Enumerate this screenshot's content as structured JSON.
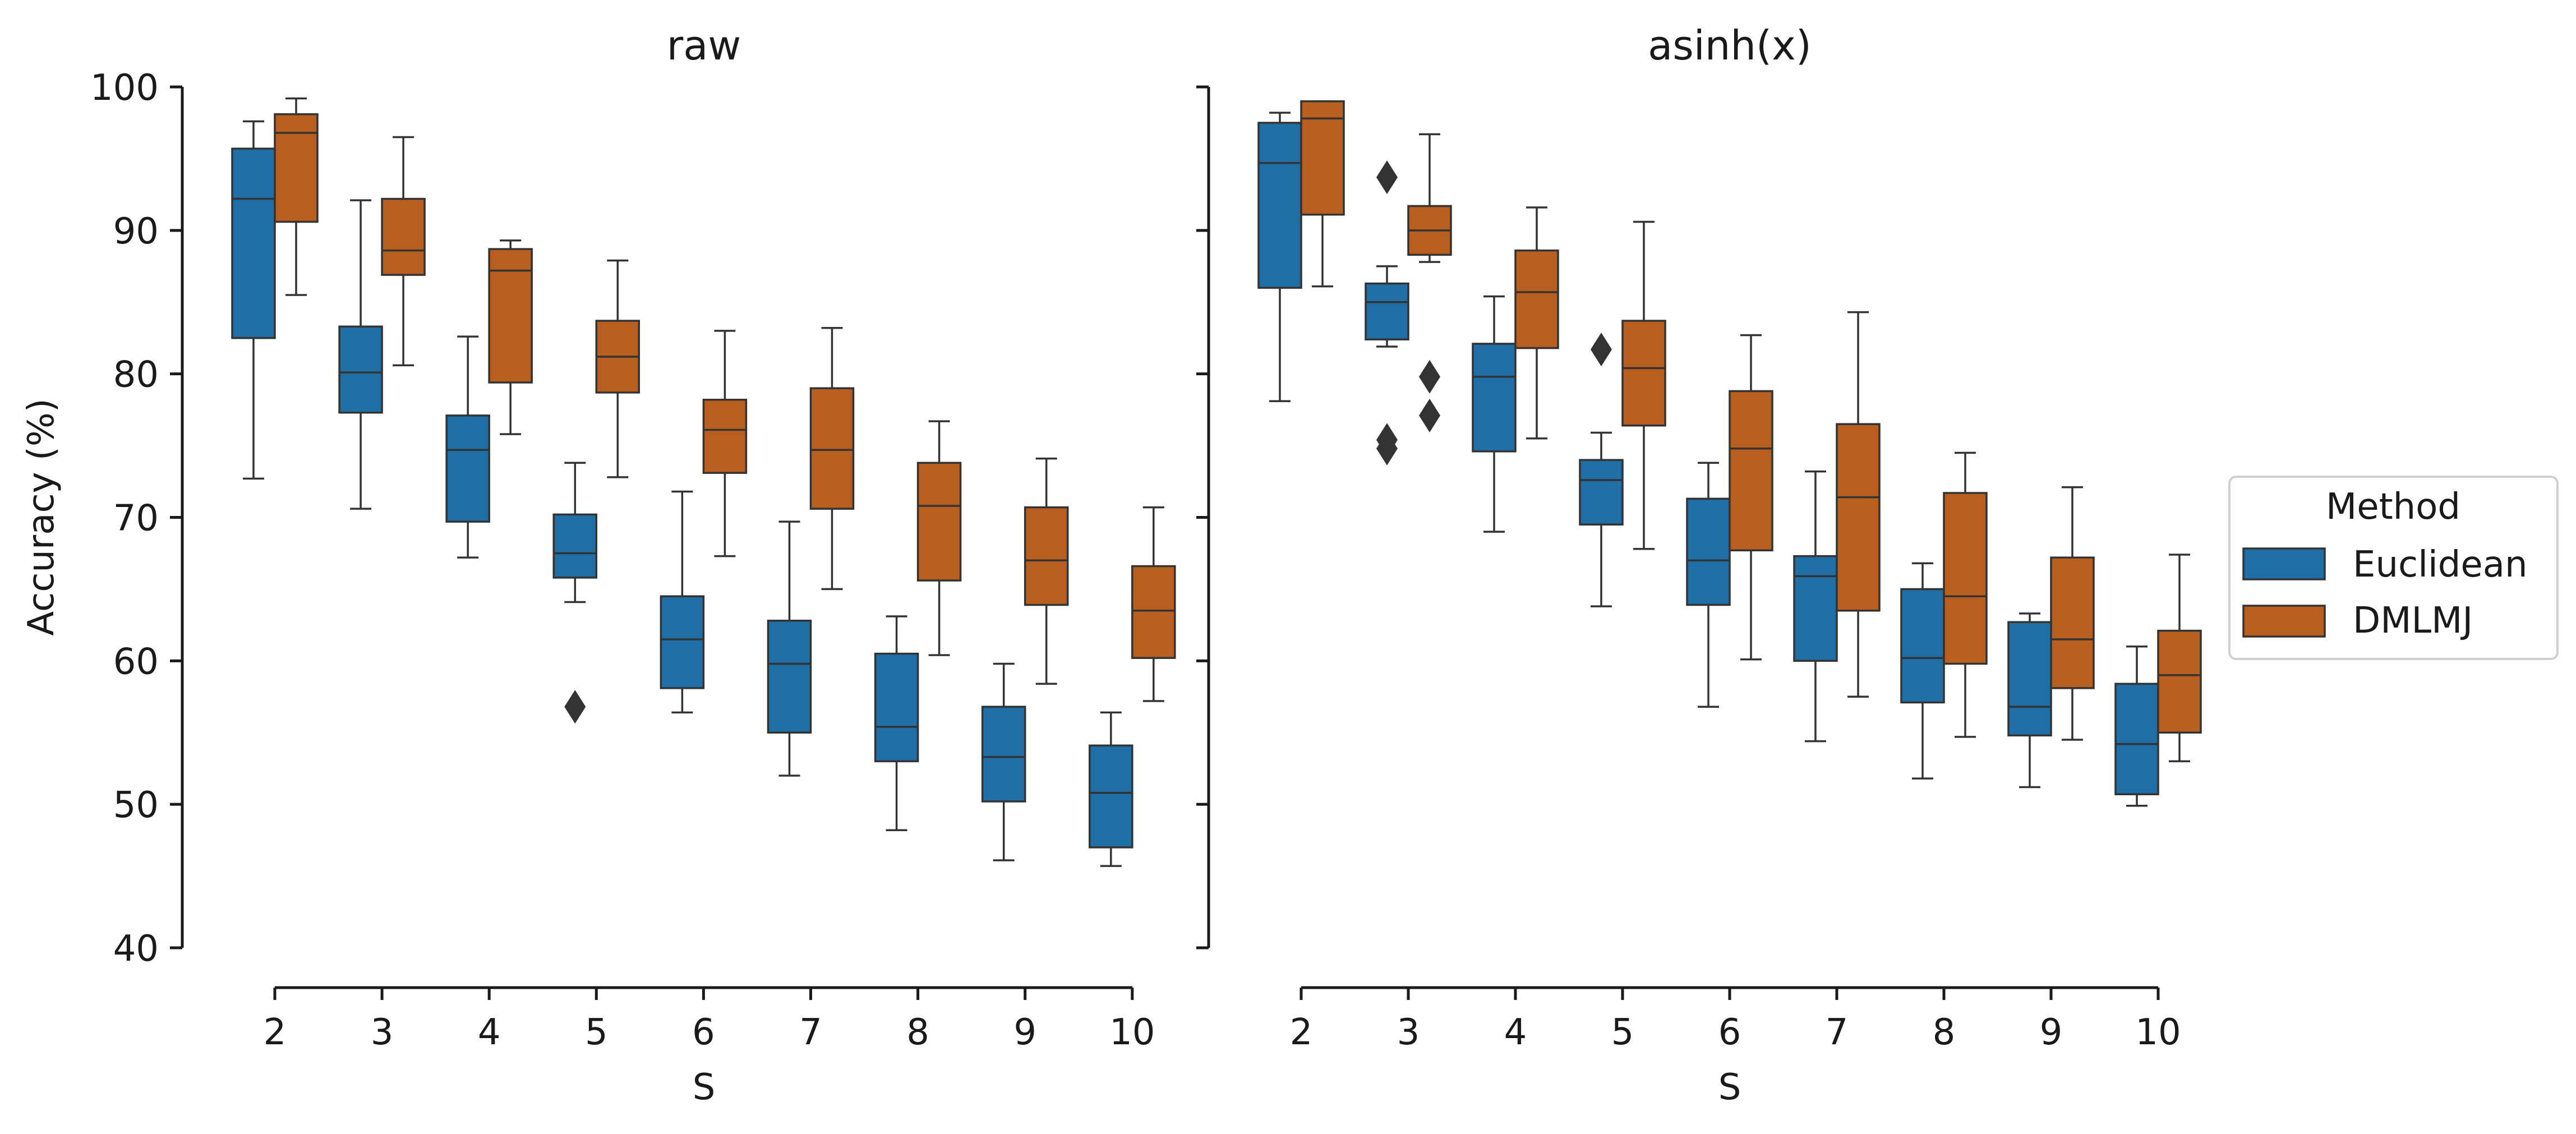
{
  "chart_data": {
    "type": "box",
    "shared": {
      "xlabel": "S",
      "ylabel": "Accuracy (%)",
      "ylim": [
        40,
        100
      ],
      "yticks": [
        40,
        50,
        60,
        70,
        80,
        90,
        100
      ],
      "grid": false,
      "legend": {
        "title": "Method",
        "placement": "right",
        "entries": [
          "Euclidean",
          "DMLMJ"
        ]
      },
      "series_colors": {
        "Euclidean": "#1f6ea5",
        "DMLMJ": "#b85e1f"
      },
      "categories": [
        "2",
        "3",
        "4",
        "5",
        "6",
        "7",
        "8",
        "9",
        "10"
      ]
    },
    "panels": [
      {
        "title": "raw",
        "series": [
          {
            "name": "Euclidean",
            "boxes": [
              {
                "whislo": 72.7,
                "q1": 82.5,
                "med": 92.2,
                "q3": 95.7,
                "whishi": 97.6,
                "fliers": []
              },
              {
                "whislo": 70.6,
                "q1": 77.3,
                "med": 80.1,
                "q3": 83.3,
                "whishi": 92.1,
                "fliers": []
              },
              {
                "whislo": 67.2,
                "q1": 69.7,
                "med": 74.7,
                "q3": 77.1,
                "whishi": 82.6,
                "fliers": []
              },
              {
                "whislo": 64.1,
                "q1": 65.8,
                "med": 67.5,
                "q3": 70.2,
                "whishi": 73.8,
                "fliers": [
                  56.8
                ]
              },
              {
                "whislo": 56.4,
                "q1": 58.1,
                "med": 61.5,
                "q3": 64.5,
                "whishi": 71.8,
                "fliers": []
              },
              {
                "whislo": 52.0,
                "q1": 55.0,
                "med": 59.8,
                "q3": 62.8,
                "whishi": 69.7,
                "fliers": []
              },
              {
                "whislo": 48.2,
                "q1": 53.0,
                "med": 55.4,
                "q3": 60.5,
                "whishi": 63.1,
                "fliers": []
              },
              {
                "whislo": 46.1,
                "q1": 50.2,
                "med": 53.3,
                "q3": 56.8,
                "whishi": 59.8,
                "fliers": []
              },
              {
                "whislo": 45.7,
                "q1": 47.0,
                "med": 50.8,
                "q3": 54.1,
                "whishi": 56.4,
                "fliers": []
              }
            ]
          },
          {
            "name": "DMLMJ",
            "boxes": [
              {
                "whislo": 85.5,
                "q1": 90.6,
                "med": 96.8,
                "q3": 98.1,
                "whishi": 99.2,
                "fliers": []
              },
              {
                "whislo": 80.6,
                "q1": 86.9,
                "med": 88.6,
                "q3": 92.2,
                "whishi": 96.5,
                "fliers": []
              },
              {
                "whislo": 75.8,
                "q1": 79.4,
                "med": 87.2,
                "q3": 88.7,
                "whishi": 89.3,
                "fliers": []
              },
              {
                "whislo": 72.8,
                "q1": 78.7,
                "med": 81.2,
                "q3": 83.7,
                "whishi": 87.9,
                "fliers": []
              },
              {
                "whislo": 67.3,
                "q1": 73.1,
                "med": 76.1,
                "q3": 78.2,
                "whishi": 83.0,
                "fliers": []
              },
              {
                "whislo": 65.0,
                "q1": 70.6,
                "med": 74.7,
                "q3": 79.0,
                "whishi": 83.2,
                "fliers": []
              },
              {
                "whislo": 60.4,
                "q1": 65.6,
                "med": 70.8,
                "q3": 73.8,
                "whishi": 76.7,
                "fliers": []
              },
              {
                "whislo": 58.4,
                "q1": 63.9,
                "med": 67.0,
                "q3": 70.7,
                "whishi": 74.1,
                "fliers": []
              },
              {
                "whislo": 57.2,
                "q1": 60.2,
                "med": 63.5,
                "q3": 66.6,
                "whishi": 70.7,
                "fliers": []
              }
            ]
          }
        ]
      },
      {
        "title": "asinh(x)",
        "series": [
          {
            "name": "Euclidean",
            "boxes": [
              {
                "whislo": 78.1,
                "q1": 86.0,
                "med": 94.7,
                "q3": 97.5,
                "whishi": 98.2,
                "fliers": []
              },
              {
                "whislo": 81.9,
                "q1": 82.4,
                "med": 85.0,
                "q3": 86.3,
                "whishi": 87.5,
                "fliers": [
                  93.7,
                  75.4,
                  74.8
                ]
              },
              {
                "whislo": 69.0,
                "q1": 74.6,
                "med": 79.8,
                "q3": 82.1,
                "whishi": 85.4,
                "fliers": []
              },
              {
                "whislo": 63.8,
                "q1": 69.5,
                "med": 72.6,
                "q3": 74.0,
                "whishi": 75.9,
                "fliers": [
                  81.7
                ]
              },
              {
                "whislo": 56.8,
                "q1": 63.9,
                "med": 67.0,
                "q3": 71.3,
                "whishi": 73.8,
                "fliers": []
              },
              {
                "whislo": 54.4,
                "q1": 60.0,
                "med": 65.9,
                "q3": 67.3,
                "whishi": 73.2,
                "fliers": []
              },
              {
                "whislo": 51.8,
                "q1": 57.1,
                "med": 60.2,
                "q3": 65.0,
                "whishi": 66.8,
                "fliers": []
              },
              {
                "whislo": 51.2,
                "q1": 54.8,
                "med": 56.8,
                "q3": 62.7,
                "whishi": 63.3,
                "fliers": []
              },
              {
                "whislo": 49.9,
                "q1": 50.7,
                "med": 54.2,
                "q3": 58.4,
                "whishi": 61.0,
                "fliers": []
              }
            ]
          },
          {
            "name": "DMLMJ",
            "boxes": [
              {
                "whislo": 86.1,
                "q1": 91.1,
                "med": 97.8,
                "q3": 99.0,
                "whishi": 99.0,
                "fliers": []
              },
              {
                "whislo": 87.8,
                "q1": 88.3,
                "med": 90.0,
                "q3": 91.7,
                "whishi": 96.7,
                "fliers": [
                  79.8,
                  77.1
                ]
              },
              {
                "whislo": 75.5,
                "q1": 81.8,
                "med": 85.7,
                "q3": 88.6,
                "whishi": 91.6,
                "fliers": []
              },
              {
                "whislo": 67.8,
                "q1": 76.4,
                "med": 80.4,
                "q3": 83.7,
                "whishi": 90.6,
                "fliers": []
              },
              {
                "whislo": 60.1,
                "q1": 67.7,
                "med": 74.8,
                "q3": 78.8,
                "whishi": 82.7,
                "fliers": []
              },
              {
                "whislo": 57.5,
                "q1": 63.5,
                "med": 71.4,
                "q3": 76.5,
                "whishi": 84.3,
                "fliers": []
              },
              {
                "whislo": 54.7,
                "q1": 59.8,
                "med": 64.5,
                "q3": 71.7,
                "whishi": 74.5,
                "fliers": []
              },
              {
                "whislo": 54.5,
                "q1": 58.1,
                "med": 61.5,
                "q3": 67.2,
                "whishi": 72.1,
                "fliers": []
              },
              {
                "whislo": 53.0,
                "q1": 55.0,
                "med": 59.0,
                "q3": 62.1,
                "whishi": 67.4,
                "fliers": []
              }
            ]
          }
        ]
      }
    ]
  }
}
